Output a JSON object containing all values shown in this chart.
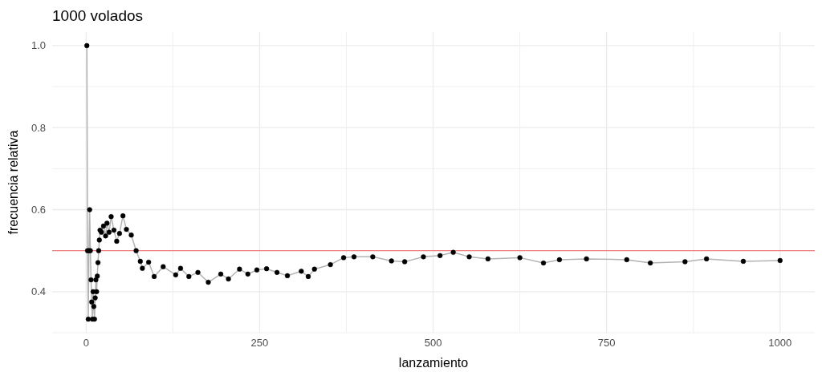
{
  "chart_data": {
    "type": "line",
    "title": "1000 volados",
    "xlabel": "lanzamiento",
    "ylabel": "frecuencia relativa",
    "x": [
      1,
      2,
      3,
      4,
      5,
      6,
      7,
      8,
      9,
      10,
      11,
      12,
      13,
      14,
      15,
      16,
      17,
      18,
      19,
      20,
      22,
      25,
      28,
      30,
      33,
      36,
      40,
      44,
      48,
      53,
      58,
      65,
      72,
      78,
      81,
      90,
      98,
      111,
      129,
      136,
      148,
      161,
      176,
      194,
      205,
      221,
      233,
      246,
      260,
      275,
      290,
      310,
      320,
      329,
      352,
      371,
      386,
      413,
      440,
      459,
      486,
      510,
      529,
      552,
      579,
      625,
      659,
      682,
      721,
      779,
      813,
      863,
      894,
      947,
      1000
    ],
    "series": [
      {
        "color": "#b3b3b3",
        "values": [
          1,
          0.5,
          0.333,
          0.5,
          0.6,
          0.5,
          0.429,
          0.375,
          0.333,
          0.4,
          0.364,
          0.333,
          0.385,
          0.429,
          0.4,
          0.438,
          0.471,
          0.5,
          0.526,
          0.55,
          0.545,
          0.56,
          0.536,
          0.567,
          0.545,
          0.583,
          0.55,
          0.523,
          0.542,
          0.585,
          0.552,
          0.538,
          0.5,
          0.474,
          0.457,
          0.472,
          0.437,
          0.461,
          0.441,
          0.457,
          0.437,
          0.447,
          0.423,
          0.443,
          0.431,
          0.455,
          0.443,
          0.453,
          0.456,
          0.447,
          0.439,
          0.45,
          0.437,
          0.455,
          0.466,
          0.483,
          0.485,
          0.485,
          0.475,
          0.473,
          0.485,
          0.488,
          0.496,
          0.485,
          0.48,
          0.483,
          0.47,
          0.478,
          0.48,
          0.478,
          0.47,
          0.473,
          0.48,
          0.474,
          0.476
        ]
      },
      {
        "type": "scatter",
        "marker": "circle",
        "color": "#000000",
        "values": [
          1,
          0.5,
          0.333,
          0.5,
          0.6,
          0.5,
          0.429,
          0.375,
          0.333,
          0.4,
          0.364,
          0.333,
          0.385,
          0.429,
          0.4,
          0.438,
          0.471,
          0.5,
          0.526,
          0.55,
          0.545,
          0.56,
          0.536,
          0.567,
          0.545,
          0.583,
          0.55,
          0.523,
          0.542,
          0.585,
          0.552,
          0.538,
          0.5,
          0.474,
          0.457,
          0.472,
          0.437,
          0.461,
          0.441,
          0.457,
          0.437,
          0.447,
          0.423,
          0.443,
          0.431,
          0.455,
          0.443,
          0.453,
          0.456,
          0.447,
          0.439,
          0.45,
          0.437,
          0.455,
          0.466,
          0.483,
          0.485,
          0.485,
          0.475,
          0.473,
          0.485,
          0.488,
          0.496,
          0.485,
          0.48,
          0.483,
          0.47,
          0.478,
          0.48,
          0.478,
          0.47,
          0.473,
          0.48,
          0.474,
          0.476
        ]
      }
    ],
    "grid": true,
    "xlim": [
      -49,
      1050
    ],
    "ylim": [
      0.3,
      1.033
    ],
    "xticks": [
      0,
      {
        "value": 125,
        "label": null
      },
      250,
      {
        "value": 375,
        "label": null
      },
      500,
      {
        "value": 625,
        "label": null
      },
      750,
      {
        "value": 875,
        "label": null
      },
      1000
    ],
    "yticks": [
      {
        "value": 0.3,
        "label": null
      },
      0.4,
      {
        "value": 0.5,
        "label": null
      },
      0.6,
      {
        "value": 0.7,
        "label": null
      },
      0.8,
      {
        "value": 0.9,
        "label": null
      },
      {
        "value": 1,
        "label": "1.0"
      }
    ],
    "ref_lines": [
      {
        "axis": "y",
        "value": 0.5,
        "color": "#f08080"
      }
    ]
  }
}
